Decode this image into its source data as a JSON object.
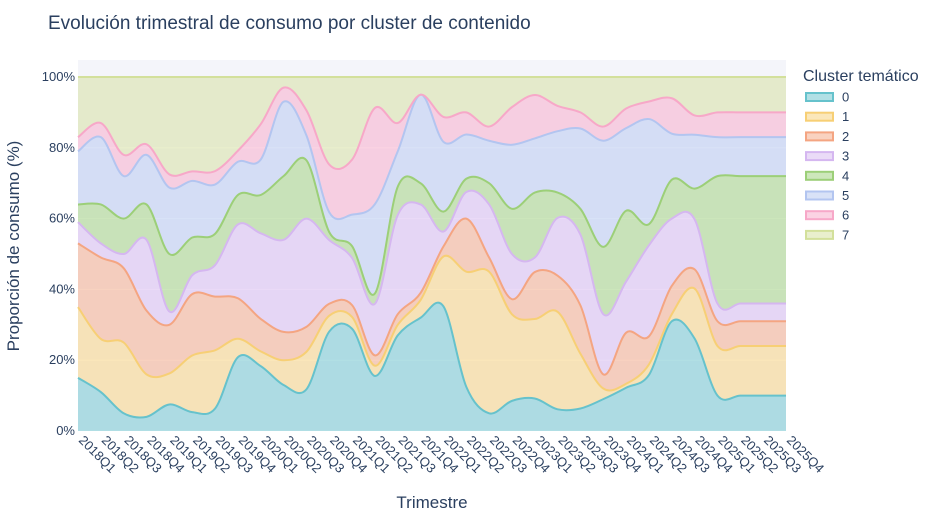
{
  "chart_data": {
    "type": "area",
    "stacked": true,
    "normalized": true,
    "title": "Evolución trimestral de consumo por cluster de contenido",
    "xlabel": "Trimestre",
    "ylabel": "Proporción de consumo (%)",
    "ylim": [
      0,
      100
    ],
    "yticks": [
      "0%",
      "20%",
      "40%",
      "60%",
      "80%",
      "100%"
    ],
    "legend_title": "Cluster temático",
    "legend_position": "right",
    "plot_background": "#f4f5fa",
    "categories": [
      "2018Q1",
      "2018Q2",
      "2018Q3",
      "2018Q4",
      "2019Q1",
      "2019Q2",
      "2019Q3",
      "2019Q4",
      "2020Q1",
      "2020Q2",
      "2020Q3",
      "2020Q4",
      "2021Q1",
      "2021Q2",
      "2021Q3",
      "2021Q4",
      "2022Q1",
      "2022Q2",
      "2022Q3",
      "2022Q4",
      "2023Q1",
      "2023Q2",
      "2023Q3",
      "2023Q4",
      "2024Q1",
      "2024Q2",
      "2024Q3",
      "2024Q4",
      "2025Q1",
      "2025Q2",
      "2025Q3",
      "2025Q4"
    ],
    "series": [
      {
        "name": "0",
        "color": "#66c2cc",
        "values": [
          15,
          11,
          5,
          4,
          6,
          4,
          5,
          20,
          22,
          13,
          10,
          25,
          26,
          16,
          27,
          32,
          25,
          10,
          5,
          8,
          9,
          6,
          7,
          9,
          11,
          16,
          31,
          24,
          10,
          10,
          10,
          10
        ]
      },
      {
        "name": "1",
        "color": "#f7cf75",
        "values": [
          20,
          15,
          20,
          12,
          7,
          12,
          13,
          5,
          5,
          7,
          9,
          4,
          3,
          3,
          3,
          5,
          10,
          26,
          40,
          23,
          22,
          27,
          17,
          3,
          1,
          3,
          2,
          13,
          14,
          14,
          14,
          14
        ]
      },
      {
        "name": "2",
        "color": "#f4a582",
        "values": [
          18,
          23,
          21,
          18,
          11,
          13,
          12,
          11,
          11,
          8,
          6,
          3,
          3,
          3,
          3,
          2,
          2,
          12,
          4,
          4,
          13,
          10,
          15,
          4,
          13,
          8,
          8,
          5,
          7,
          7,
          7,
          7
        ]
      },
      {
        "name": "3",
        "color": "#d5b7f0",
        "values": [
          6,
          4,
          4,
          20,
          3,
          4,
          7,
          20,
          29,
          26,
          26,
          16,
          12,
          15,
          28,
          25,
          3,
          6,
          15,
          12,
          4,
          16,
          22,
          17,
          13,
          26,
          19,
          13,
          5,
          5,
          5,
          5
        ]
      },
      {
        "name": "4",
        "color": "#9ccf78",
        "values": [
          5,
          11,
          10,
          10,
          13,
          8,
          7,
          8,
          13,
          18,
          14,
          2,
          3,
          3,
          8,
          6,
          4,
          3,
          6,
          12,
          18,
          7,
          8,
          19,
          18,
          6,
          11,
          8,
          36,
          36,
          36,
          36
        ]
      },
      {
        "name": "5",
        "color": "#b3c5f0",
        "values": [
          15,
          19,
          12,
          14,
          15,
          12,
          11,
          9,
          12,
          21,
          6,
          5,
          8,
          26,
          10,
          25,
          14,
          10,
          12,
          17,
          15,
          17,
          25,
          30,
          21,
          30,
          13,
          14,
          11,
          11,
          11,
          11
        ]
      },
      {
        "name": "6",
        "color": "#f7a8c8",
        "values": [
          4,
          4,
          6,
          3,
          3,
          2,
          3,
          3,
          12,
          4,
          6,
          12,
          14,
          28,
          8,
          0,
          5,
          5,
          4,
          10,
          12,
          7,
          5,
          4,
          5,
          5,
          10,
          5,
          7,
          7,
          7,
          7
        ]
      },
      {
        "name": "7",
        "color": "#d3e09b",
        "values": [
          17,
          13,
          22,
          19,
          22,
          20,
          21,
          20,
          16,
          3,
          8,
          22,
          21,
          9,
          13,
          5,
          8,
          8,
          14,
          8,
          5,
          8,
          11,
          14,
          8,
          7,
          6,
          10,
          10,
          10,
          10,
          10
        ]
      }
    ]
  }
}
